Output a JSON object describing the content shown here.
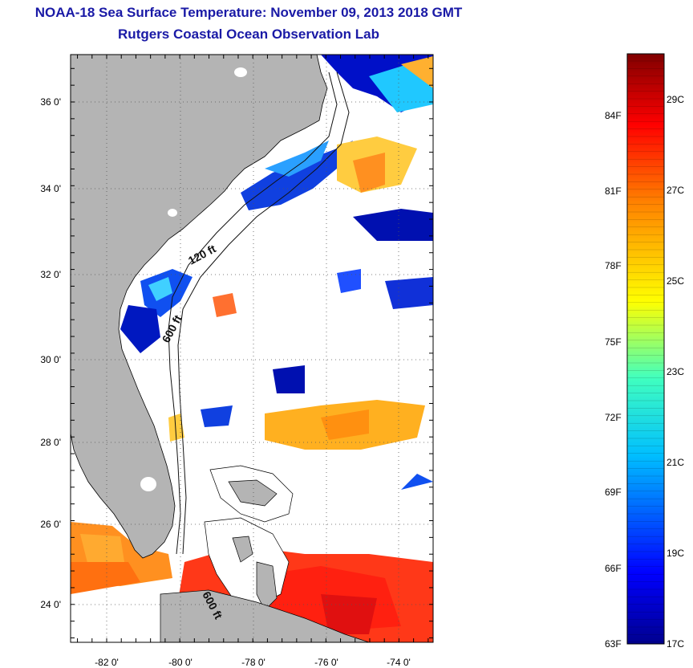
{
  "header": {
    "title": "NOAA-18 Sea Surface Temperature:  November 09, 2013 2018 GMT",
    "subtitle": "Rutgers Coastal Ocean Observation Lab"
  },
  "map": {
    "lon_ticks": [
      "-82 0'",
      "-80 0'",
      "-78 0'",
      "-76 0'",
      "-74 0'"
    ],
    "lat_ticks": [
      "36 0'",
      "34 0'",
      "32 0'",
      "30 0'",
      "28 0'",
      "26 0'",
      "24 0'"
    ],
    "depth_labels": [
      "120 ft",
      "600 ft",
      "600 ft"
    ],
    "land_color": "#b4b4b4",
    "cloud_color": "#ffffff"
  },
  "colorbar": {
    "f_labels": [
      "84F",
      "81F",
      "78F",
      "75F",
      "72F",
      "69F",
      "66F",
      "63F"
    ],
    "c_labels": [
      "29C",
      "27C",
      "25C",
      "23C",
      "21C",
      "19C",
      "17C"
    ]
  }
}
